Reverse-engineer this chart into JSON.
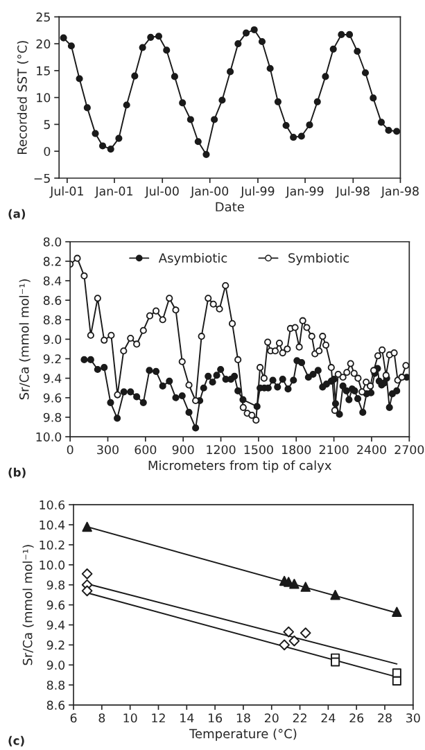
{
  "chart_data": [
    {
      "type": "line",
      "xlabel": "Date",
      "ylabel": "Recorded SST (°C)",
      "annotations": [
        "(a)"
      ],
      "marker": "circle",
      "line_style": "solid",
      "grid": false,
      "legend": false,
      "x": [
        "2001-07-15",
        "2001-06-15",
        "2001-05-15",
        "2001-04-15",
        "2001-03-15",
        "2001-02-15",
        "2001-01-15",
        "2000-12-15",
        "2000-11-15",
        "2000-10-15",
        "2000-09-15",
        "2000-08-15",
        "2000-07-15",
        "2000-06-15",
        "2000-05-15",
        "2000-04-15",
        "2000-03-15",
        "2000-02-15",
        "2000-01-15",
        "1999-12-15",
        "1999-11-15",
        "1999-10-15",
        "1999-09-15",
        "1999-08-15",
        "1999-07-15",
        "1999-06-15",
        "1999-05-15",
        "1999-04-15",
        "1999-03-15",
        "1999-02-15",
        "1999-01-15",
        "1998-12-15",
        "1998-11-15",
        "1998-10-15",
        "1998-09-15",
        "1998-08-15",
        "1998-07-15",
        "1998-06-15",
        "1998-05-15",
        "1998-04-15",
        "1998-03-15",
        "1998-02-15",
        "1998-01-15"
      ],
      "series": [
        {
          "color": "#1a1a1a",
          "values": [
            21.1,
            19.6,
            13.5,
            8.1,
            3.3,
            1.0,
            0.4,
            2.4,
            8.6,
            14.0,
            19.3,
            21.2,
            21.4,
            18.8,
            13.9,
            9.0,
            5.9,
            1.8,
            -0.6,
            5.9,
            9.5,
            14.8,
            20.0,
            22.0,
            22.6,
            20.4,
            15.4,
            9.2,
            4.8,
            2.6,
            2.8,
            4.9,
            9.2,
            13.9,
            19.0,
            21.7,
            21.7,
            18.6,
            14.6,
            9.9,
            5.4,
            3.9,
            3.7
          ]
        }
      ],
      "xlim": [
        "2001-08-01",
        "1998-01-01"
      ],
      "xticks": [
        {
          "value": "2001-07-01",
          "label": "Jul-01"
        },
        {
          "value": "2001-01-01",
          "label": "Jan-01"
        },
        {
          "value": "2000-07-01",
          "label": "Jul-00"
        },
        {
          "value": "2000-01-01",
          "label": "Jan-00"
        },
        {
          "value": "1999-07-01",
          "label": "Jul-99"
        },
        {
          "value": "1999-01-01",
          "label": "Jan-99"
        },
        {
          "value": "1998-07-01",
          "label": "Jul-98"
        },
        {
          "value": "1998-01-01",
          "label": "Jan-98"
        }
      ],
      "ylim": [
        -5,
        25
      ],
      "yticks": [
        {
          "value": -5,
          "label": "−5"
        },
        0,
        5,
        10,
        15,
        20,
        25
      ]
    },
    {
      "type": "line",
      "xlabel": "Micrometers from tip of calyx",
      "ylabel": "Sr/Ca (mmol mol⁻¹)",
      "annotations": [
        "(b)"
      ],
      "marker": "circle",
      "line_style": "solid",
      "grid": false,
      "legend": "top",
      "series": [
        {
          "name": "Asymbiotic",
          "color": "#1a1a1a",
          "x": [
            112,
            164,
            219,
            271,
            322,
            375,
            428,
            481,
            530,
            583,
            631,
            684,
            737,
            790,
            841,
            892,
            946,
            999,
            1032,
            1063,
            1099,
            1134,
            1167,
            1198,
            1239,
            1280,
            1308,
            1336,
            1376,
            1488,
            1512,
            1546,
            1577,
            1614,
            1651,
            1692,
            1735,
            1778,
            1806,
            1843,
            1897,
            1934,
            1974,
            2010,
            2041,
            2079,
            2100,
            2113,
            2144,
            2172,
            2200,
            2220,
            2245,
            2265,
            2290,
            2330,
            2360,
            2395,
            2425,
            2447,
            2460,
            2480,
            2500,
            2520,
            2542,
            2565,
            2600,
            2640,
            2680
          ],
          "values": [
            9.21,
            9.21,
            9.31,
            9.29,
            9.65,
            9.81,
            9.54,
            9.54,
            9.59,
            9.65,
            9.32,
            9.33,
            9.48,
            9.43,
            9.6,
            9.58,
            9.75,
            9.91,
            9.63,
            9.5,
            9.38,
            9.44,
            9.37,
            9.31,
            9.41,
            9.41,
            9.38,
            9.53,
            9.62,
            9.69,
            9.5,
            9.5,
            9.5,
            9.42,
            9.49,
            9.41,
            9.51,
            9.42,
            9.22,
            9.24,
            9.39,
            9.36,
            9.32,
            9.49,
            9.46,
            9.43,
            9.41,
            9.66,
            9.77,
            9.48,
            9.53,
            9.62,
            9.51,
            9.53,
            9.61,
            9.75,
            9.56,
            9.55,
            9.35,
            9.3,
            9.43,
            9.47,
            9.45,
            9.4,
            9.7,
            9.56,
            9.53,
            9.39,
            9.39
          ]
        },
        {
          "name": "Symbiotic",
          "color": "#ffffff",
          "x": [
            0,
            57,
            112,
            164,
            219,
            271,
            327,
            377,
            426,
            481,
            530,
            583,
            634,
            684,
            737,
            790,
            841,
            892,
            946,
            999,
            1046,
            1099,
            1140,
            1189,
            1237,
            1291,
            1336,
            1378,
            1410,
            1447,
            1480,
            1512,
            1544,
            1573,
            1596,
            1633,
            1666,
            1692,
            1729,
            1754,
            1791,
            1824,
            1852,
            1884,
            1924,
            1949,
            1982,
            2010,
            2036,
            2079,
            2107,
            2134,
            2172,
            2203,
            2233,
            2261,
            2292,
            2324,
            2357,
            2390,
            2417,
            2450,
            2484,
            2515,
            2543,
            2580,
            2608,
            2641,
            2673
          ],
          "values": [
            8.23,
            8.17,
            8.35,
            8.96,
            8.58,
            9.01,
            8.96,
            9.57,
            9.12,
            8.99,
            9.05,
            8.91,
            8.76,
            8.71,
            8.8,
            8.58,
            8.7,
            9.23,
            9.47,
            9.63,
            8.97,
            8.58,
            8.64,
            8.69,
            8.45,
            8.84,
            9.21,
            9.7,
            9.76,
            9.78,
            9.83,
            9.29,
            9.4,
            9.03,
            9.12,
            9.12,
            9.04,
            9.14,
            9.1,
            8.89,
            8.88,
            9.08,
            8.81,
            8.88,
            8.97,
            9.15,
            9.12,
            8.97,
            9.06,
            9.29,
            9.73,
            9.36,
            9.39,
            9.34,
            9.25,
            9.35,
            9.4,
            9.54,
            9.44,
            9.48,
            9.32,
            9.17,
            9.11,
            9.37,
            9.16,
            9.14,
            9.42,
            9.39,
            9.27
          ]
        }
      ],
      "xlim": [
        0,
        2700
      ],
      "xticks": [
        0,
        300,
        600,
        900,
        1200,
        1500,
        1800,
        2100,
        2400,
        2700
      ],
      "ylim": [
        10.0,
        8.0
      ],
      "yticks": [
        {
          "value": 8,
          "label": "8.0"
        },
        {
          "value": 8.2,
          "label": "8.2"
        },
        {
          "value": 8.4,
          "label": "8.4"
        },
        {
          "value": 8.6,
          "label": "8.6"
        },
        {
          "value": 8.8,
          "label": "8.8"
        },
        {
          "value": 9,
          "label": "9.0"
        },
        {
          "value": 9.2,
          "label": "9.2"
        },
        {
          "value": 9.4,
          "label": "9.4"
        },
        {
          "value": 9.6,
          "label": "9.6"
        },
        {
          "value": 9.8,
          "label": "9.8"
        },
        {
          "value": 10,
          "label": "10.0"
        }
      ]
    },
    {
      "type": "scatter",
      "xlabel": "Temperature (°C)",
      "ylabel": "Sr/Ca (mmol mol⁻¹)",
      "annotations": [
        "(c)"
      ],
      "grid": false,
      "legend": false,
      "series": [
        {
          "type": "scatter",
          "marker": "triangle",
          "color": "#1a1a1a",
          "x": [
            6.96,
            20.9,
            21.2,
            21.6,
            22.4,
            24.5,
            28.85
          ],
          "values": [
            10.38,
            9.84,
            9.83,
            9.81,
            9.78,
            9.7,
            9.53
          ]
        },
        {
          "type": "scatter",
          "marker": "diamond",
          "color": "#ffffff",
          "x": [
            6.96,
            6.96,
            6.96,
            20.9,
            21.2,
            21.6,
            22.4
          ],
          "values": [
            9.91,
            9.8,
            9.74,
            9.2,
            9.33,
            9.24,
            9.32
          ]
        },
        {
          "type": "scatter",
          "marker": "square",
          "color": "#ffffff",
          "x": [
            24.5,
            24.5,
            28.85,
            28.85
          ],
          "values": [
            9.07,
            9.03,
            8.92,
            8.84
          ]
        },
        {
          "type": "line",
          "marker": "none",
          "color": "#1a1a1a",
          "x": [
            6.96,
            28.85
          ],
          "values": [
            10.38,
            9.52
          ]
        },
        {
          "type": "line",
          "marker": "none",
          "color": "#1a1a1a",
          "x": [
            6.96,
            28.85
          ],
          "values": [
            9.81,
            9.01
          ]
        },
        {
          "type": "line",
          "marker": "none",
          "color": "#1a1a1a",
          "x": [
            6.96,
            28.85
          ],
          "values": [
            9.72,
            8.88
          ]
        }
      ],
      "xlim": [
        6,
        30
      ],
      "xticks": [
        6,
        8,
        10,
        12,
        14,
        16,
        18,
        20,
        22,
        24,
        26,
        28,
        30
      ],
      "ylim": [
        8.6,
        10.6
      ],
      "yticks": [
        {
          "value": 8.6,
          "label": "8.6"
        },
        {
          "value": 8.8,
          "label": "8.8"
        },
        {
          "value": 9,
          "label": "9.0"
        },
        {
          "value": 9.2,
          "label": "9.2"
        },
        {
          "value": 9.4,
          "label": "9.4"
        },
        {
          "value": 9.6,
          "label": "9.6"
        },
        {
          "value": 9.8,
          "label": "9.8"
        },
        {
          "value": 10,
          "label": "10.0"
        },
        {
          "value": 10.2,
          "label": "10.2"
        },
        {
          "value": 10.4,
          "label": "10.4"
        },
        {
          "value": 10.6,
          "label": "10.6"
        }
      ]
    }
  ]
}
